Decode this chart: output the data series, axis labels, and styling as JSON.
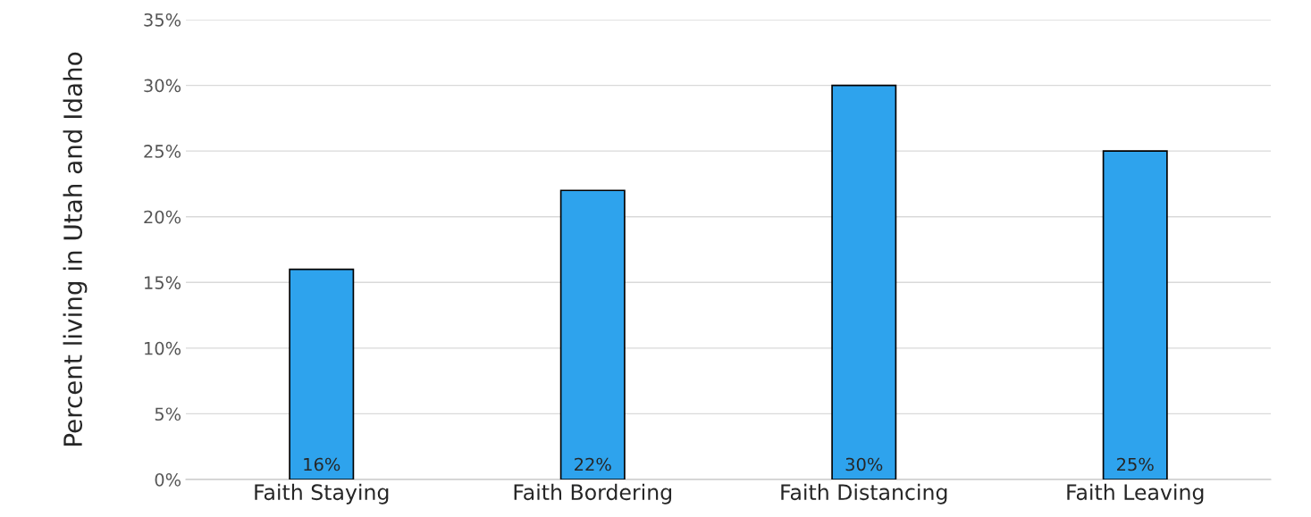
{
  "chart_data": {
    "type": "bar",
    "ylabel": "Percent living in Utah and Idaho",
    "categories": [
      "Faith Staying",
      "Faith Bordering",
      "Faith Distancing",
      "Faith Leaving"
    ],
    "values": [
      16,
      22,
      30,
      25
    ],
    "value_labels": [
      "16%",
      "22%",
      "30%",
      "25%"
    ],
    "color": "#2ea3ed",
    "ylim": [
      0,
      35
    ],
    "yticks": [
      {
        "value": 0,
        "label": "0%"
      },
      {
        "value": 5,
        "label": "5%"
      },
      {
        "value": 10,
        "label": "10%"
      },
      {
        "value": 15,
        "label": "15%"
      },
      {
        "value": 20,
        "label": "20%"
      },
      {
        "value": 25,
        "label": "25%"
      },
      {
        "value": 30,
        "label": "30%"
      },
      {
        "value": 35,
        "label": "35%"
      }
    ],
    "grid": "y"
  }
}
